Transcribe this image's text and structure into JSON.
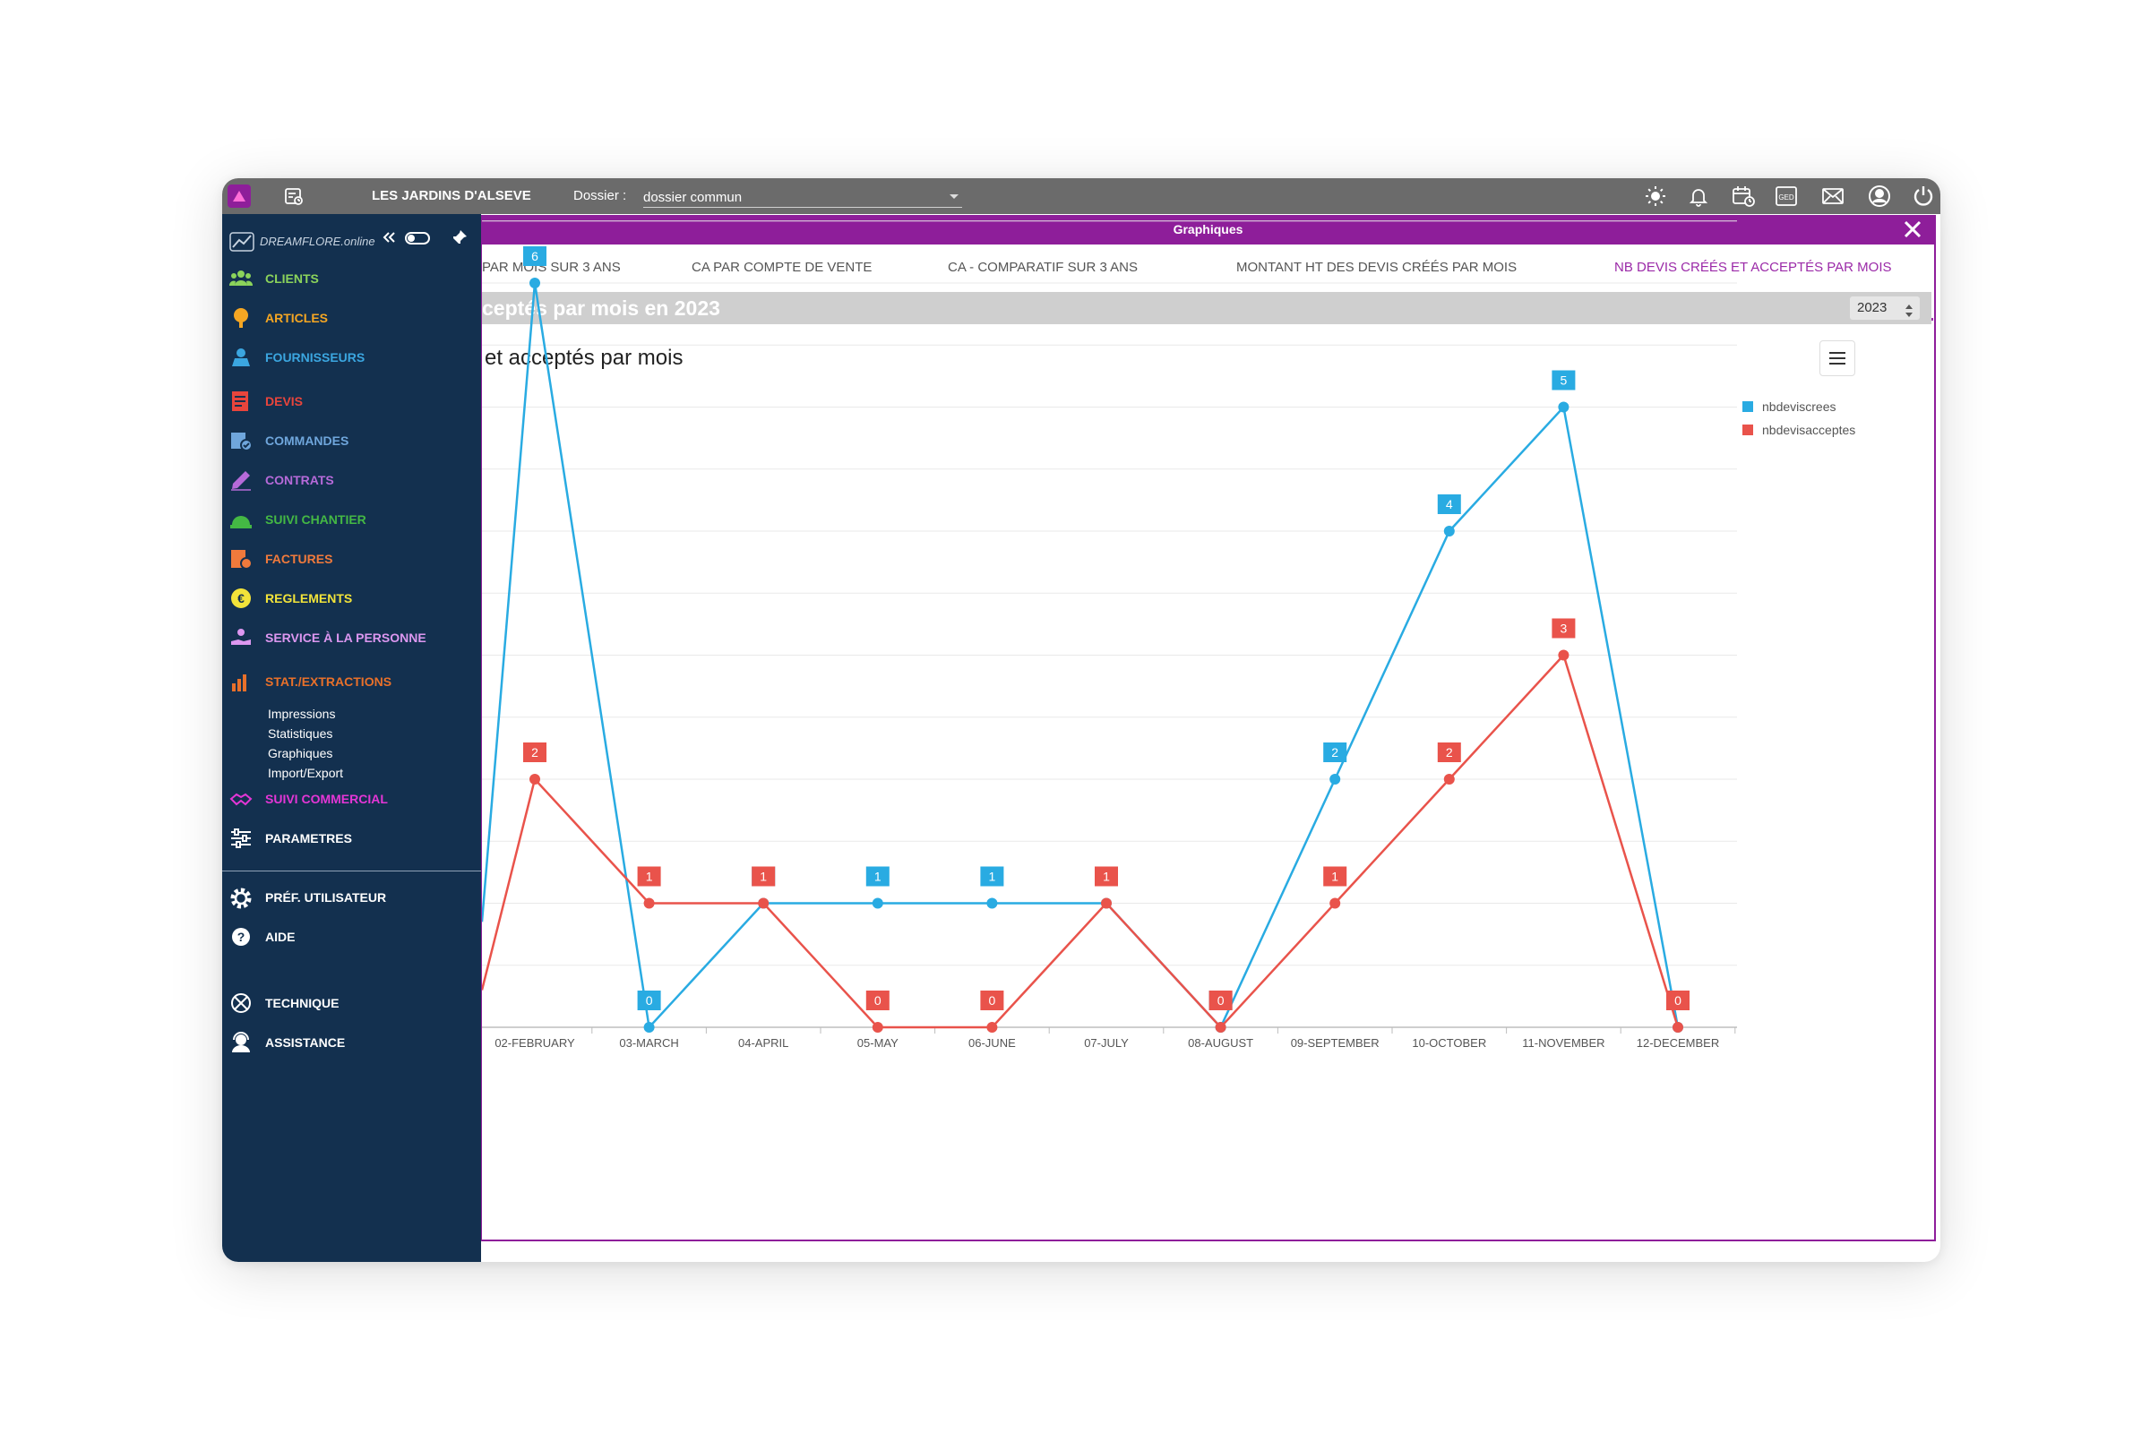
{
  "topbar": {
    "company": "LES JARDINS D'ALSEVE",
    "dossier_label": "Dossier :",
    "dossier_value": "dossier commun",
    "ged_label": "GED",
    "icons": [
      "app-logo-icon",
      "calendar-list-icon",
      "sun-icon",
      "bell-icon",
      "calendar-icon",
      "ged-icon",
      "mail-icon",
      "user-icon",
      "power-icon"
    ]
  },
  "sidebar": {
    "brand": "DREAMFLORE.online",
    "items": [
      {
        "label": "CLIENTS",
        "color": "#8bd35b",
        "icon": "clients-icon"
      },
      {
        "label": "ARTICLES",
        "color": "#f5a623",
        "icon": "articles-icon"
      },
      {
        "label": "FOURNISSEURS",
        "color": "#3ba6e0",
        "icon": "fournisseurs-icon"
      },
      {
        "label": "DEVIS",
        "color": "#e8453c",
        "icon": "devis-icon"
      },
      {
        "label": "COMMANDES",
        "color": "#6fa6dc",
        "icon": "commandes-icon"
      },
      {
        "label": "CONTRATS",
        "color": "#b66ad9",
        "icon": "contrats-icon"
      },
      {
        "label": "SUIVI CHANTIER",
        "color": "#44b844",
        "icon": "suivi-chantier-icon"
      },
      {
        "label": "FACTURES",
        "color": "#f07a3c",
        "icon": "factures-icon"
      },
      {
        "label": "REGLEMENTS",
        "color": "#f2e33a",
        "icon": "reglements-icon"
      },
      {
        "label": "SERVICE À LA PERSONNE",
        "color": "#dc97f0",
        "icon": "service-personne-icon"
      },
      {
        "label": "STAT./EXTRACTIONS",
        "color": "#e8702a",
        "icon": "stat-extractions-icon"
      },
      {
        "label": "SUIVI COMMERCIAL",
        "color": "#e436d6",
        "icon": "suivi-commercial-icon"
      },
      {
        "label": "PARAMETRES",
        "color": "#ffffff",
        "icon": "parametres-icon"
      },
      {
        "label": "PRÉF. UTILISATEUR",
        "color": "#ffffff",
        "icon": "gear-icon"
      },
      {
        "label": "AIDE",
        "color": "#ffffff",
        "icon": "help-icon"
      },
      {
        "label": "TECHNIQUE",
        "color": "#ffffff",
        "icon": "technique-icon"
      },
      {
        "label": "ASSISTANCE",
        "color": "#ffffff",
        "icon": "assistance-icon"
      }
    ],
    "stat_subitems": [
      "Impressions",
      "Statistiques",
      "Graphiques",
      "Import/Export"
    ]
  },
  "panel": {
    "title": "Graphiques",
    "tabs": [
      "PAR MOIS SUR 3 ANS",
      "CA PAR COMPTE DE VENTE",
      "CA - COMPARATIF SUR 3 ANS",
      "MONTANT HT DES DEVIS CRÉÉS PAR MOIS",
      "NB DEVIS CRÉÉS ET ACCEPTÉS PAR MOIS"
    ],
    "active_tab": 4,
    "subheader": "ceptés par mois  en 2023",
    "year": "2023"
  },
  "chart_data": {
    "type": "line",
    "title": "et acceptés par mois",
    "categories": [
      "02-FEBRUARY",
      "03-MARCH",
      "04-APRIL",
      "05-MAY",
      "06-JUNE",
      "07-JULY",
      "08-AUGUST",
      "09-SEPTEMBER",
      "10-OCTOBER",
      "11-NOVEMBER",
      "12-DECEMBER"
    ],
    "ylim": [
      0,
      6.5
    ],
    "grid": true,
    "legend_position": "top-right",
    "series": [
      {
        "name": "nbdeviscrees",
        "color": "#29abe2",
        "values": [
          6,
          0,
          1,
          1,
          1,
          1,
          0,
          2,
          4,
          5,
          0
        ]
      },
      {
        "name": "nbdevisacceptes",
        "color": "#e9534b",
        "values": [
          2,
          1,
          1,
          0,
          0,
          1,
          0,
          1,
          2,
          3,
          0
        ]
      }
    ]
  }
}
